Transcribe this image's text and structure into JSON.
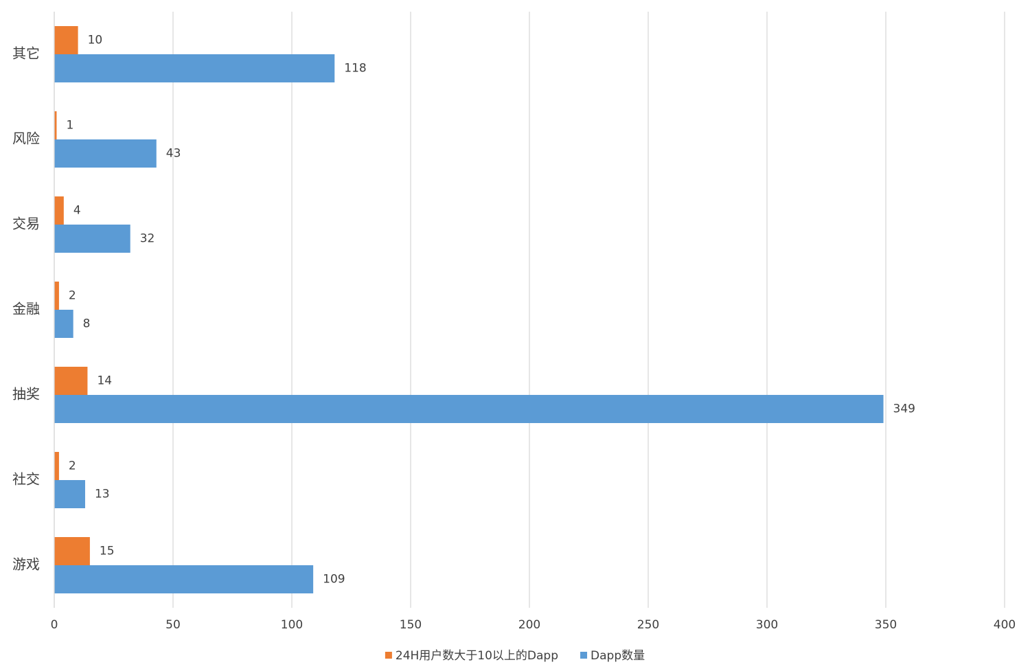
{
  "chart_data": {
    "type": "hbar",
    "categories": [
      "游戏",
      "社交",
      "抽奖",
      "金融",
      "交易",
      "风险",
      "其它"
    ],
    "series": [
      {
        "name": "24H用户数大于10以上的Dapp",
        "color": "#ed7d31",
        "values": [
          15,
          2,
          14,
          2,
          4,
          1,
          10
        ]
      },
      {
        "name": "Dapp数量",
        "color": "#5b9bd5",
        "values": [
          109,
          13,
          349,
          8,
          32,
          43,
          118
        ]
      }
    ],
    "xlim": [
      0,
      400
    ],
    "xticks": [
      0,
      50,
      100,
      150,
      200,
      250,
      300,
      350,
      400
    ],
    "grid": true,
    "legend": "bottom"
  }
}
